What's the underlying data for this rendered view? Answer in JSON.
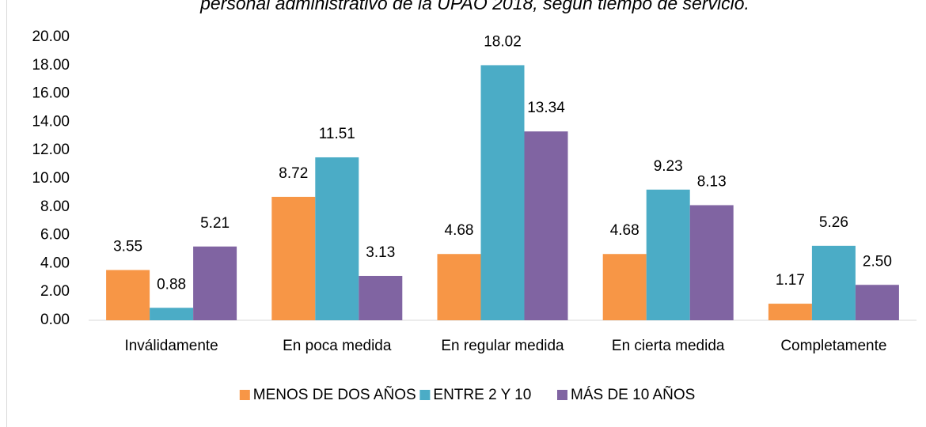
{
  "chart_data": {
    "type": "bar",
    "title": "personal administrativo de la UPAO 2018, según tiempo de servicio.",
    "categories": [
      "Inválidamente",
      "En poca medida",
      "En regular medida",
      "En cierta medida",
      "Completamente"
    ],
    "series": [
      {
        "name": "MENOS DE DOS AÑOS",
        "color": "#F79646",
        "values": [
          3.55,
          8.72,
          4.68,
          4.68,
          1.17
        ],
        "value_labels": [
          "3.55",
          "8.72",
          "4.68",
          "4.68",
          "1.17"
        ]
      },
      {
        "name": "ENTRE 2 Y 10",
        "color": "#4BACC6",
        "values": [
          0.88,
          11.51,
          18.02,
          9.23,
          5.26
        ],
        "value_labels": [
          "0.88",
          "11.51",
          "18.02",
          "9.23",
          "5.26"
        ]
      },
      {
        "name": "MÁS DE 10 AÑOS",
        "color": "#8064A2",
        "values": [
          5.21,
          3.13,
          13.34,
          8.13,
          2.5
        ],
        "value_labels": [
          "5.21",
          "3.13",
          "13.34",
          "8.13",
          "2.50"
        ]
      }
    ],
    "ylim": [
      0,
      20
    ],
    "yticks": [
      {
        "value": 0,
        "label": "0.00"
      },
      {
        "value": 2,
        "label": "2.00"
      },
      {
        "value": 4,
        "label": "4.00"
      },
      {
        "value": 6,
        "label": "6.00"
      },
      {
        "value": 8,
        "label": "8.00"
      },
      {
        "value": 10,
        "label": "10.00"
      },
      {
        "value": 12,
        "label": "12.00"
      },
      {
        "value": 14,
        "label": "14.00"
      },
      {
        "value": 16,
        "label": "16.00"
      },
      {
        "value": 18,
        "label": "18.00"
      },
      {
        "value": 20,
        "label": "20.00"
      }
    ],
    "grid": false,
    "legend": "bottom"
  }
}
